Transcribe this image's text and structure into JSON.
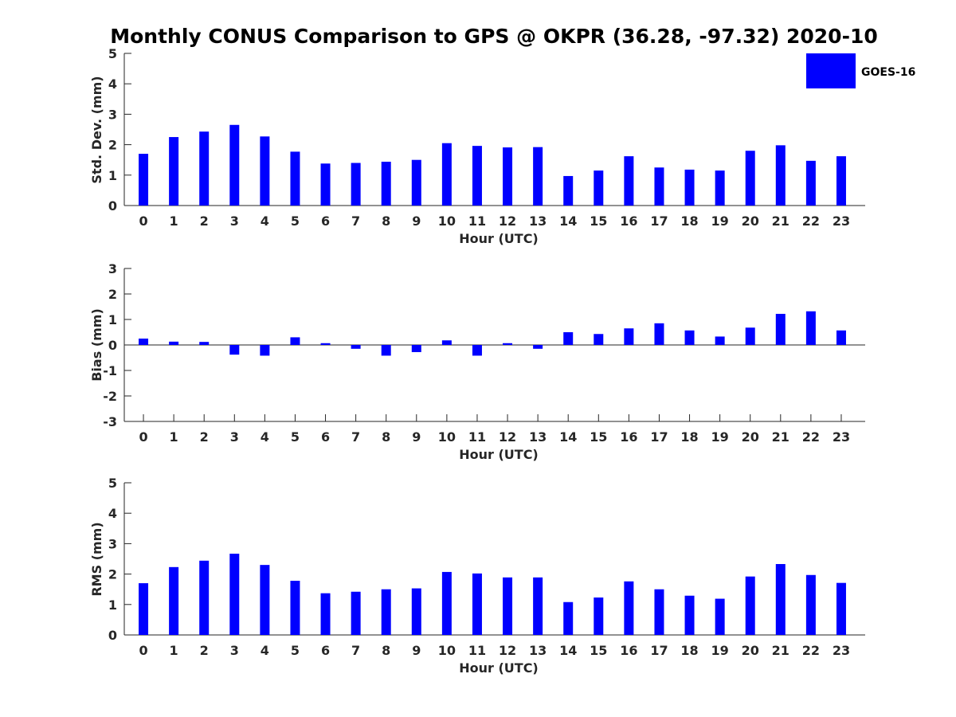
{
  "figure_title": "Monthly CONUS Comparison to GPS @ OKPR (36.28, -97.32) 2020-10",
  "bar_color": "#0000ff",
  "legend": {
    "label": "GOES-16"
  },
  "chart_data": [
    {
      "type": "bar",
      "title": "Monthly CONUS Comparison to GPS @ OKPR (36.28, -97.32) 2020-10",
      "xlabel": "Hour (UTC)",
      "ylabel": "Std. Dev. (mm)",
      "ylim": [
        0,
        5
      ],
      "yticks": [
        0,
        1,
        2,
        3,
        4,
        5
      ],
      "categories": [
        0,
        1,
        2,
        3,
        4,
        5,
        6,
        7,
        8,
        9,
        10,
        11,
        12,
        13,
        14,
        15,
        16,
        17,
        18,
        19,
        20,
        21,
        22,
        23
      ],
      "series": [
        {
          "name": "GOES-16",
          "values": [
            1.7,
            2.25,
            2.43,
            2.65,
            2.27,
            1.77,
            1.38,
            1.4,
            1.44,
            1.5,
            2.05,
            1.96,
            1.91,
            1.92,
            0.97,
            1.15,
            1.62,
            1.25,
            1.18,
            1.15,
            1.8,
            1.98,
            1.47,
            1.62
          ]
        }
      ]
    },
    {
      "type": "bar",
      "xlabel": "Hour (UTC)",
      "ylabel": "Bias (mm)",
      "ylim": [
        -3,
        3
      ],
      "yticks": [
        -3,
        -2,
        -1,
        0,
        1,
        2,
        3
      ],
      "categories": [
        0,
        1,
        2,
        3,
        4,
        5,
        6,
        7,
        8,
        9,
        10,
        11,
        12,
        13,
        14,
        15,
        16,
        17,
        18,
        19,
        20,
        21,
        22,
        23
      ],
      "series": [
        {
          "name": "GOES-16",
          "values": [
            0.25,
            0.13,
            0.12,
            -0.38,
            -0.42,
            0.3,
            0.07,
            -0.15,
            -0.42,
            -0.28,
            0.18,
            -0.42,
            0.07,
            -0.15,
            0.5,
            0.43,
            0.65,
            0.85,
            0.57,
            0.33,
            0.68,
            1.22,
            1.32,
            0.57
          ]
        }
      ]
    },
    {
      "type": "bar",
      "xlabel": "Hour (UTC)",
      "ylabel": "RMS (mm)",
      "ylim": [
        0,
        5
      ],
      "yticks": [
        0,
        1,
        2,
        3,
        4,
        5
      ],
      "categories": [
        0,
        1,
        2,
        3,
        4,
        5,
        6,
        7,
        8,
        9,
        10,
        11,
        12,
        13,
        14,
        15,
        16,
        17,
        18,
        19,
        20,
        21,
        22,
        23
      ],
      "series": [
        {
          "name": "GOES-16",
          "values": [
            1.7,
            2.23,
            2.44,
            2.67,
            2.3,
            1.78,
            1.37,
            1.42,
            1.5,
            1.53,
            2.07,
            2.02,
            1.89,
            1.89,
            1.08,
            1.23,
            1.76,
            1.5,
            1.29,
            1.19,
            1.92,
            2.33,
            1.97,
            1.71
          ]
        }
      ]
    }
  ]
}
